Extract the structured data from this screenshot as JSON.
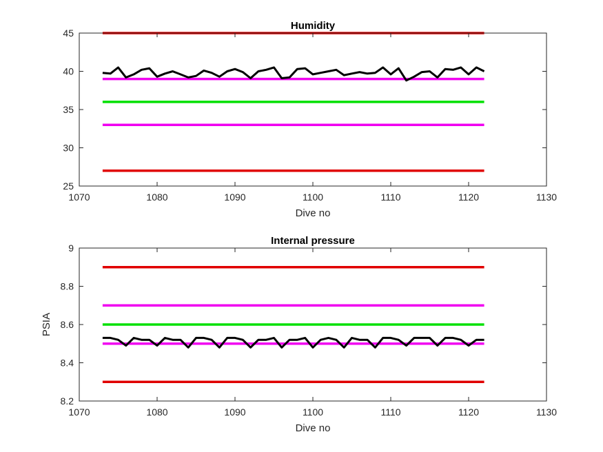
{
  "chart_data": [
    {
      "type": "line",
      "title": "Humidity",
      "xlabel": "Dive no",
      "ylabel": "",
      "xlim": [
        1070,
        1130
      ],
      "ylim": [
        25,
        45
      ],
      "xticks": [
        1070,
        1080,
        1090,
        1100,
        1110,
        1120,
        1130
      ],
      "xtick_labels": [
        "1070",
        "1080",
        "1090",
        "1100",
        "1110",
        "1120",
        "1130"
      ],
      "yticks": [
        25,
        30,
        35,
        40,
        45
      ],
      "ytick_labels": [
        "25",
        "30",
        "35",
        "40",
        "45"
      ],
      "grid": false,
      "series": [
        {
          "role": "limit-high",
          "color": "#e00000",
          "x": [
            1073,
            1122
          ],
          "values": [
            45,
            45
          ]
        },
        {
          "role": "warning-high",
          "color": "#f000f0",
          "x": [
            1073,
            1122
          ],
          "values": [
            39,
            39
          ]
        },
        {
          "role": "nominal",
          "color": "#00e000",
          "x": [
            1073,
            1122
          ],
          "values": [
            36,
            36
          ]
        },
        {
          "role": "warning-low",
          "color": "#f000f0",
          "x": [
            1073,
            1122
          ],
          "values": [
            33,
            33
          ]
        },
        {
          "role": "limit-low",
          "color": "#e00000",
          "x": [
            1073,
            1122
          ],
          "values": [
            27,
            27
          ]
        },
        {
          "role": "measured",
          "color": "#000000",
          "x": [
            1073,
            1074,
            1075,
            1076,
            1077,
            1078,
            1079,
            1080,
            1081,
            1082,
            1083,
            1084,
            1085,
            1086,
            1087,
            1088,
            1089,
            1090,
            1091,
            1092,
            1093,
            1094,
            1095,
            1096,
            1097,
            1098,
            1099,
            1100,
            1101,
            1102,
            1103,
            1104,
            1105,
            1106,
            1107,
            1108,
            1109,
            1110,
            1111,
            1112,
            1113,
            1114,
            1115,
            1116,
            1117,
            1118,
            1119,
            1120,
            1121,
            1122
          ],
          "values": [
            39.8,
            39.7,
            40.5,
            39.2,
            39.6,
            40.2,
            40.4,
            39.3,
            39.7,
            40.0,
            39.6,
            39.2,
            39.4,
            40.1,
            39.8,
            39.3,
            40.0,
            40.3,
            39.9,
            39.1,
            40.0,
            40.2,
            40.5,
            39.1,
            39.2,
            40.3,
            40.4,
            39.6,
            39.8,
            40.0,
            40.2,
            39.5,
            39.7,
            39.9,
            39.7,
            39.8,
            40.5,
            39.6,
            40.4,
            38.8,
            39.3,
            39.9,
            40.0,
            39.2,
            40.3,
            40.2,
            40.5,
            39.6,
            40.5,
            40.0
          ]
        }
      ]
    },
    {
      "type": "line",
      "title": "Internal pressure",
      "xlabel": "Dive no",
      "ylabel": "PSIA",
      "xlim": [
        1070,
        1130
      ],
      "ylim": [
        8.2,
        9
      ],
      "xticks": [
        1070,
        1080,
        1090,
        1100,
        1110,
        1120,
        1130
      ],
      "xtick_labels": [
        "1070",
        "1080",
        "1090",
        "1100",
        "1110",
        "1120",
        "1130"
      ],
      "yticks": [
        8.2,
        8.4,
        8.6,
        8.8,
        9
      ],
      "ytick_labels": [
        "8.2",
        "8.4",
        "8.6",
        "8.8",
        "9"
      ],
      "grid": false,
      "series": [
        {
          "role": "limit-high",
          "color": "#e00000",
          "x": [
            1073,
            1122
          ],
          "values": [
            8.9,
            8.9
          ]
        },
        {
          "role": "warning-high",
          "color": "#f000f0",
          "x": [
            1073,
            1122
          ],
          "values": [
            8.7,
            8.7
          ]
        },
        {
          "role": "nominal",
          "color": "#00e000",
          "x": [
            1073,
            1122
          ],
          "values": [
            8.6,
            8.6
          ]
        },
        {
          "role": "warning-low",
          "color": "#f000f0",
          "x": [
            1073,
            1122
          ],
          "values": [
            8.5,
            8.5
          ]
        },
        {
          "role": "limit-low",
          "color": "#e00000",
          "x": [
            1073,
            1122
          ],
          "values": [
            8.3,
            8.3
          ]
        },
        {
          "role": "measured",
          "color": "#000000",
          "x": [
            1073,
            1074,
            1075,
            1076,
            1077,
            1078,
            1079,
            1080,
            1081,
            1082,
            1083,
            1084,
            1085,
            1086,
            1087,
            1088,
            1089,
            1090,
            1091,
            1092,
            1093,
            1094,
            1095,
            1096,
            1097,
            1098,
            1099,
            1100,
            1101,
            1102,
            1103,
            1104,
            1105,
            1106,
            1107,
            1108,
            1109,
            1110,
            1111,
            1112,
            1113,
            1114,
            1115,
            1116,
            1117,
            1118,
            1119,
            1120,
            1121,
            1122
          ],
          "values": [
            8.53,
            8.53,
            8.52,
            8.49,
            8.53,
            8.52,
            8.52,
            8.49,
            8.53,
            8.52,
            8.52,
            8.48,
            8.53,
            8.53,
            8.52,
            8.48,
            8.53,
            8.53,
            8.52,
            8.48,
            8.52,
            8.52,
            8.53,
            8.48,
            8.52,
            8.52,
            8.53,
            8.48,
            8.52,
            8.53,
            8.52,
            8.48,
            8.53,
            8.52,
            8.52,
            8.48,
            8.53,
            8.53,
            8.52,
            8.49,
            8.53,
            8.53,
            8.53,
            8.49,
            8.53,
            8.53,
            8.52,
            8.49,
            8.52,
            8.52
          ]
        }
      ]
    }
  ]
}
